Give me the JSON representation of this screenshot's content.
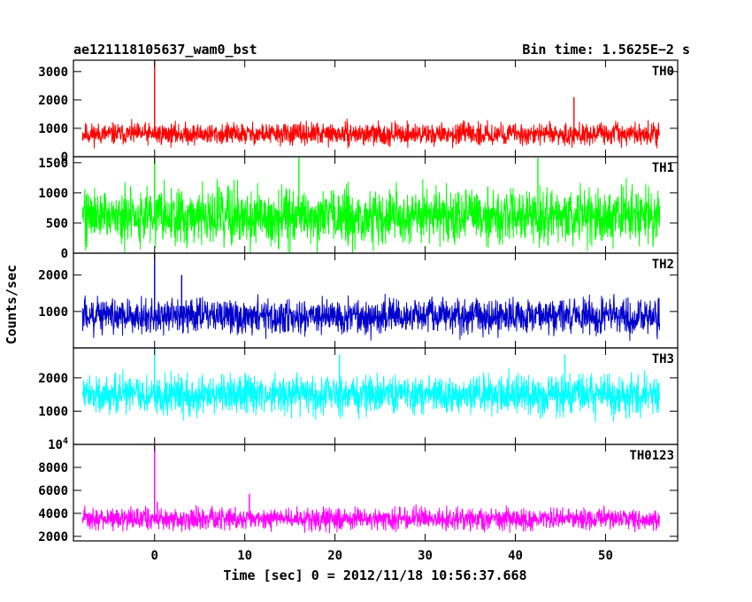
{
  "header": {
    "object_name": "ae121118105637_wam0_bst",
    "bin_time": "Bin time: 1.5625E−2 s"
  },
  "chart_data": {
    "type": "line",
    "title": "ae121118105637_wam0_bst",
    "subtitle": "Bin time: 1.5625E−2 s",
    "xlabel": "Time [sec] 0 = 2012/11/18 10:56:37.668",
    "ylabel": "Counts/sec",
    "xlim": [
      -9,
      58
    ],
    "x_ticks": [
      {
        "value": 0,
        "label": "0"
      },
      {
        "value": 10,
        "label": "10"
      },
      {
        "value": 20,
        "label": "20"
      },
      {
        "value": 30,
        "label": "30"
      },
      {
        "value": 40,
        "label": "40"
      },
      {
        "value": 50,
        "label": "50"
      }
    ],
    "data_start": -8,
    "data_end": 56,
    "panels": [
      {
        "name": "TH0",
        "color": "#ff0000",
        "ylim": [
          0,
          3400
        ],
        "y_ticks": [
          {
            "value": 0,
            "label": "0"
          },
          {
            "value": 1000,
            "label": "1000"
          },
          {
            "value": 2000,
            "label": "2000"
          },
          {
            "value": 3000,
            "label": "3000"
          }
        ],
        "mean": 800,
        "spread": 260,
        "spikes": [
          [
            0,
            3400
          ],
          [
            46.5,
            2100
          ]
        ]
      },
      {
        "name": "TH1",
        "color": "#00ff00",
        "ylim": [
          0,
          1600
        ],
        "y_ticks": [
          {
            "value": 0,
            "label": "0"
          },
          {
            "value": 500,
            "label": "500"
          },
          {
            "value": 1000,
            "label": "1000"
          },
          {
            "value": 1500,
            "label": "1500"
          }
        ],
        "mean": 620,
        "spread": 330,
        "spikes": [
          [
            0,
            1600
          ],
          [
            16,
            1600
          ],
          [
            42.5,
            1580
          ]
        ]
      },
      {
        "name": "TH2",
        "color": "#0000cc",
        "ylim": [
          0,
          2600
        ],
        "y_ticks": [
          {
            "value": 1000,
            "label": "1000"
          },
          {
            "value": 2000,
            "label": "2000"
          }
        ],
        "mean": 870,
        "spread": 330,
        "spikes": [
          [
            0,
            2600
          ],
          [
            3,
            2000
          ]
        ]
      },
      {
        "name": "TH3",
        "color": "#00ffff",
        "ylim": [
          0,
          2900
        ],
        "y_ticks": [
          {
            "value": 1000,
            "label": "1000"
          },
          {
            "value": 2000,
            "label": "2000"
          }
        ],
        "mean": 1500,
        "spread": 420,
        "spikes": [
          [
            0,
            2900
          ],
          [
            20.5,
            2700
          ],
          [
            45.5,
            2700
          ]
        ]
      },
      {
        "name": "TH0123",
        "color": "#ff00ff",
        "ylim": [
          1600,
          10000
        ],
        "y_ticks": [
          {
            "value": 2000,
            "label": "2000"
          },
          {
            "value": 4000,
            "label": "4000"
          },
          {
            "value": 6000,
            "label": "6000"
          },
          {
            "value": 8000,
            "label": "8000"
          },
          {
            "value": 10000,
            "label": "10⁴",
            "base": "10",
            "exponent": "4"
          }
        ],
        "mean": 3500,
        "spread": 650,
        "spikes": [
          [
            0,
            10000
          ],
          [
            0.3,
            5000
          ],
          [
            10.5,
            5700
          ]
        ]
      }
    ],
    "grid": false,
    "legend": "none"
  }
}
